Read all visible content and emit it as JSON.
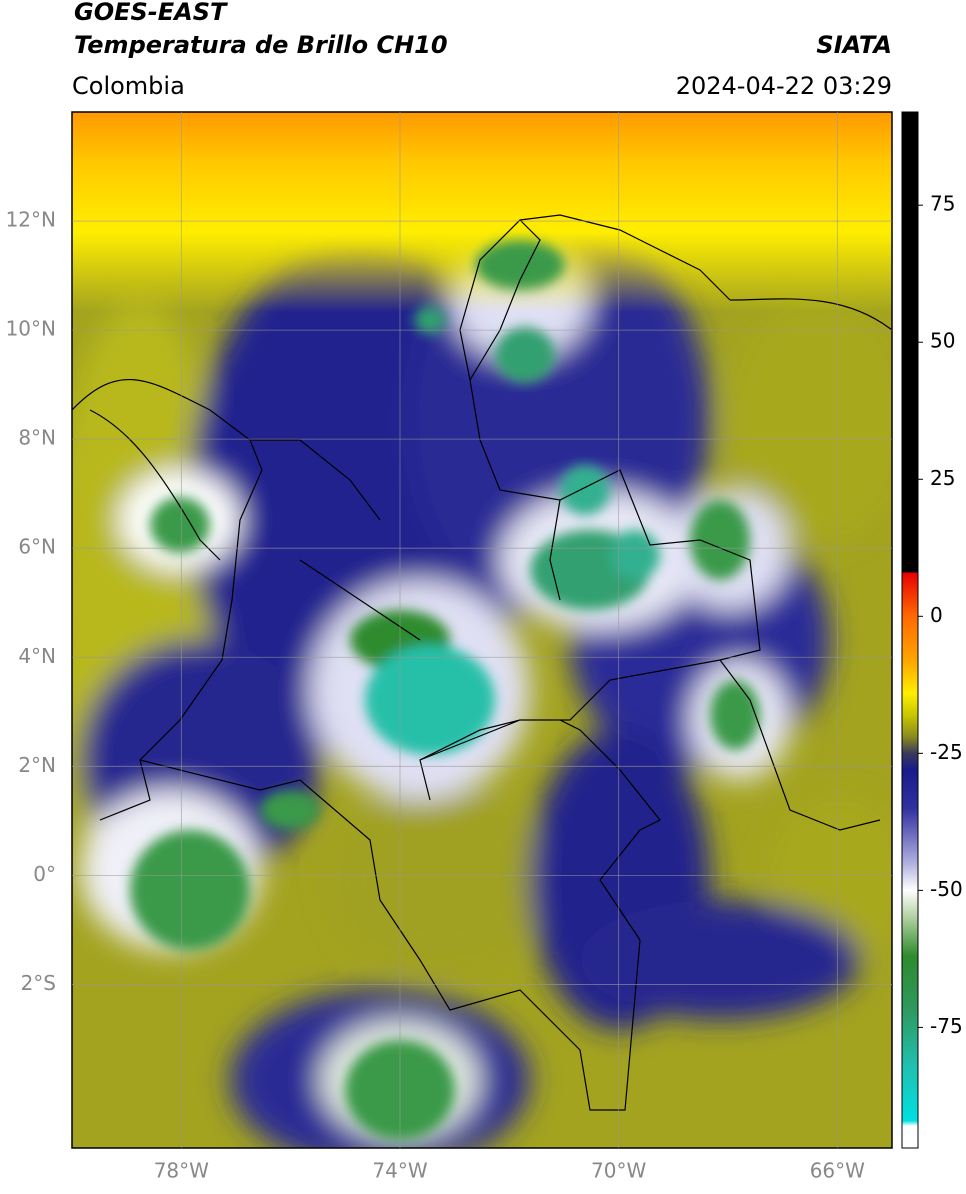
{
  "map": {
    "title": "GOES-EAST",
    "subtitle": "Temperatura de Brillo CH10",
    "source": "SIATA",
    "region": "Colombia",
    "timestamp": "2024-04-22 03:29",
    "xlim": [
      -80,
      -65
    ],
    "ylim": [
      -5,
      14
    ],
    "xticks": [
      {
        "value": -78,
        "label": "78°W"
      },
      {
        "value": -74,
        "label": "74°W"
      },
      {
        "value": -70,
        "label": "70°W"
      },
      {
        "value": -66,
        "label": "66°W"
      }
    ],
    "yticks": [
      {
        "value": 12,
        "label": "12°N"
      },
      {
        "value": 10,
        "label": "10°N"
      },
      {
        "value": 8,
        "label": "8°N"
      },
      {
        "value": 6,
        "label": "6°N"
      },
      {
        "value": 4,
        "label": "4°N"
      },
      {
        "value": 2,
        "label": "2°N"
      },
      {
        "value": 0,
        "label": "0°"
      },
      {
        "value": -2,
        "label": "2°S"
      }
    ],
    "grid": true,
    "colorbar": {
      "lim": [
        -97,
        92
      ],
      "ticks": [
        75,
        50,
        25,
        0,
        -25,
        -50,
        -75
      ],
      "colormap": [
        {
          "value": 92,
          "color": "#000000"
        },
        {
          "value": 8,
          "color": "#000000"
        },
        {
          "value": 8,
          "color": "#e60000"
        },
        {
          "value": 0,
          "color": "#ff6a00"
        },
        {
          "value": -8,
          "color": "#ffa500"
        },
        {
          "value": -14,
          "color": "#ffee00"
        },
        {
          "value": -18,
          "color": "#c8c800"
        },
        {
          "value": -22,
          "color": "#8a8a20"
        },
        {
          "value": -25,
          "color": "#3a3a5a"
        },
        {
          "value": -28,
          "color": "#1a1a8a"
        },
        {
          "value": -35,
          "color": "#3030a0"
        },
        {
          "value": -45,
          "color": "#b0b0e0"
        },
        {
          "value": -50,
          "color": "#ffffff"
        },
        {
          "value": -55,
          "color": "#b0d0a0"
        },
        {
          "value": -62,
          "color": "#2e8b2e"
        },
        {
          "value": -72,
          "color": "#2e9a60"
        },
        {
          "value": -82,
          "color": "#20c0b0"
        },
        {
          "value": -92,
          "color": "#00e0e0"
        },
        {
          "value": -93,
          "color": "#ffffff"
        },
        {
          "value": -97,
          "color": "#ffffff"
        }
      ]
    }
  }
}
